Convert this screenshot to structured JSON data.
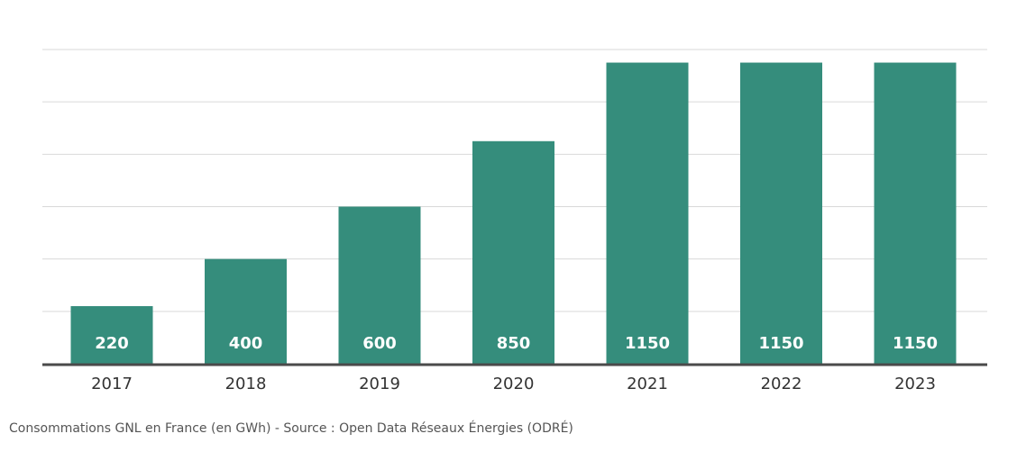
{
  "chart_data": {
    "type": "bar",
    "categories": [
      "2017",
      "2018",
      "2019",
      "2020",
      "2021",
      "2022",
      "2023"
    ],
    "values": [
      220,
      400,
      600,
      850,
      1150,
      1150,
      1150
    ],
    "ylim": [
      0,
      1200
    ],
    "grid": true,
    "bar_color": "#358d7c",
    "grid_color": "#d9d9d9",
    "axis_color": "#4a4a4a",
    "label_color": "#ffffff",
    "tick_label_color": "#333333"
  },
  "caption": "Consommations GNL en France (en GWh) - Source : Open Data Réseaux Énergies (ODRÉ)"
}
